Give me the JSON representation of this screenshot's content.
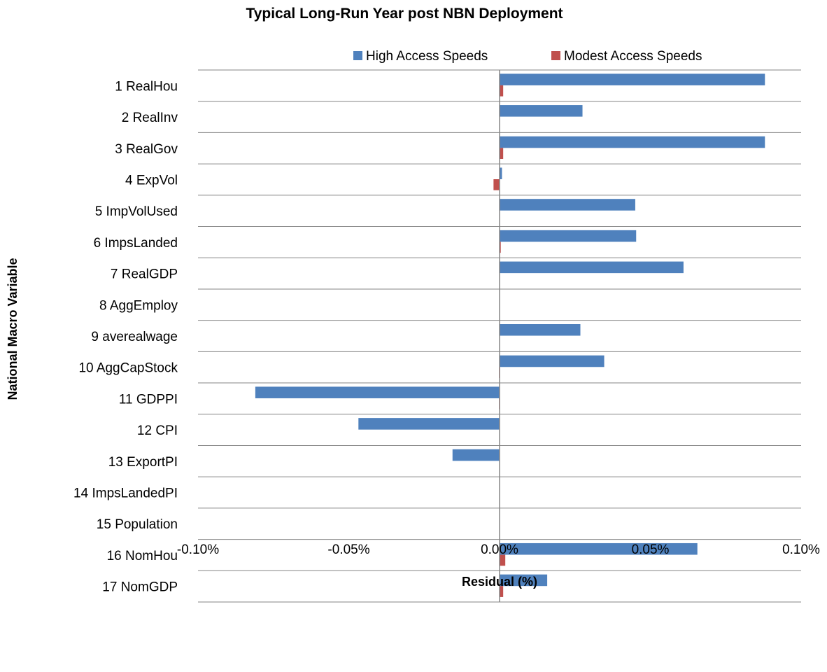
{
  "chart_data": {
    "type": "bar",
    "orientation": "horizontal",
    "title": "Typical Long-Run Year post NBN Deployment",
    "xlabel": "Residual (%)",
    "ylabel": "National Macro Variable",
    "xlim": [
      -0.1,
      0.1
    ],
    "x_ticks": [
      "-0.10%",
      "-0.05%",
      "0.00%",
      "0.05%",
      "0.10%"
    ],
    "x_tick_values": [
      -0.1,
      -0.05,
      0.0,
      0.05,
      0.1
    ],
    "grid": "horizontal category separators",
    "legend_position": "top",
    "categories": [
      "1 RealHou",
      "2 RealInv",
      "3 RealGov",
      "4 ExpVol",
      "5 ImpVolUsed",
      "6 ImpsLanded",
      "7 RealGDP",
      "8 AggEmploy",
      "9 averealwage",
      "10 AggCapStock",
      "11 GDPPI",
      "12 CPI",
      "13 ExportPI",
      "14 ImpsLandedPI",
      "15 Population",
      "16 NomHou",
      "17 NomGDP"
    ],
    "series": [
      {
        "name": "High Access Speeds",
        "color": "#4f81bd",
        "values": [
          0.088,
          0.0275,
          0.088,
          0.0008,
          0.045,
          0.0453,
          0.061,
          0.0,
          0.0268,
          0.0347,
          -0.081,
          -0.0468,
          -0.0156,
          0.0,
          0.0,
          0.0656,
          0.0158
        ]
      },
      {
        "name": "Modest Access Speeds",
        "color": "#c0504d",
        "values": [
          0.0012,
          0.0,
          0.0012,
          -0.002,
          0.0,
          0.0004,
          0.0,
          0.0,
          0.0,
          -0.0002,
          -0.0002,
          0.0,
          0.0,
          0.0,
          0.0,
          0.0019,
          0.0012
        ]
      }
    ]
  }
}
